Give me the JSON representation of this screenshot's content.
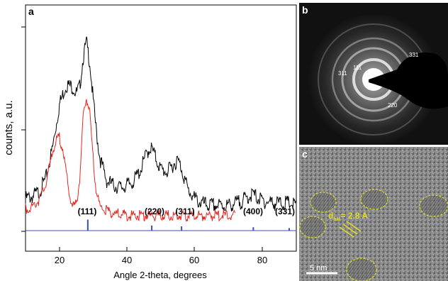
{
  "panels": {
    "a": {
      "label": "a",
      "ylabel": "counts, a.u.",
      "xlabel": "Angle 2-theta, degrees",
      "xticks": [
        "20",
        "40",
        "60",
        "80"
      ],
      "peak_labels": [
        "(111)",
        "(220)",
        "(311)",
        "(400)",
        "(331)"
      ]
    },
    "b": {
      "label": "b",
      "ring_labels": [
        "331",
        "311",
        "111",
        "220"
      ]
    },
    "c": {
      "label": "c",
      "d_spacing": "d",
      "d_subscript": "hkl",
      "d_value": "= 2.8 A",
      "scale_bar": "5 nm"
    }
  },
  "colors": {
    "black_series": "#000000",
    "red_series": "#e8261f",
    "reference": "#3b4fb4",
    "annotation_yellow": "#e0e020"
  },
  "chart_data": {
    "type": "line",
    "title": "",
    "xlabel": "Angle 2-theta, degrees",
    "ylabel": "counts, a.u.",
    "xlim": [
      10,
      90
    ],
    "series": [
      {
        "color": "black",
        "x": [
          10,
          12,
          14,
          16,
          18,
          20,
          22,
          24,
          25,
          26,
          27,
          28,
          29,
          30,
          31,
          32,
          34,
          36,
          38,
          40,
          42,
          44,
          46,
          47,
          48,
          50,
          52,
          54,
          55,
          56,
          58,
          60,
          62,
          64,
          66,
          70,
          74,
          77,
          80,
          84,
          88,
          90
        ],
        "values": [
          0.16,
          0.17,
          0.19,
          0.25,
          0.39,
          0.58,
          0.67,
          0.66,
          0.63,
          0.66,
          0.79,
          0.86,
          0.77,
          0.6,
          0.45,
          0.34,
          0.24,
          0.22,
          0.21,
          0.22,
          0.24,
          0.29,
          0.37,
          0.39,
          0.36,
          0.29,
          0.28,
          0.32,
          0.33,
          0.3,
          0.2,
          0.16,
          0.14,
          0.13,
          0.13,
          0.13,
          0.15,
          0.18,
          0.15,
          0.14,
          0.14,
          0.13
        ]
      },
      {
        "color": "red",
        "x": [
          10,
          12,
          14,
          16,
          17,
          18,
          19,
          20,
          21,
          22,
          23,
          24,
          25,
          26,
          27,
          28,
          29,
          30,
          31,
          32,
          34,
          36,
          40,
          45,
          50,
          55,
          60,
          65,
          70,
          72
        ],
        "values": [
          0.11,
          0.12,
          0.15,
          0.22,
          0.29,
          0.37,
          0.41,
          0.43,
          0.38,
          0.27,
          0.17,
          0.12,
          0.13,
          0.24,
          0.51,
          0.61,
          0.53,
          0.33,
          0.18,
          0.12,
          0.1,
          0.09,
          0.08,
          0.08,
          0.08,
          0.08,
          0.08,
          0.08,
          0.08,
          0.08
        ]
      },
      {
        "color": "blue",
        "type": "stick",
        "x": [
          28.4,
          47.3,
          56.1,
          77.3,
          87.9
        ],
        "values": [
          0.13,
          0.06,
          0.05,
          0.04,
          0.03
        ]
      }
    ]
  }
}
